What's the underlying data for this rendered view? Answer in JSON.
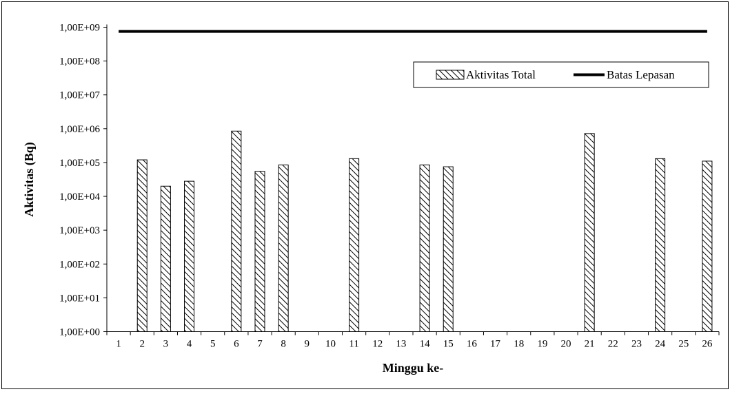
{
  "chart_data": {
    "type": "bar",
    "title": "",
    "xlabel": "Minggu ke-",
    "ylabel": "Aktivitas (Bq)",
    "yscale": "log",
    "ylim": [
      1,
      1000000000
    ],
    "y_tick_labels": [
      "1,00E+00",
      "1,00E+01",
      "1,00E+02",
      "1,00E+03",
      "1,00E+04",
      "1,00E+05",
      "1,00E+06",
      "1,00E+07",
      "1,00E+08",
      "1,00E+09"
    ],
    "categories": [
      "1",
      "2",
      "3",
      "4",
      "5",
      "6",
      "7",
      "8",
      "9",
      "10",
      "11",
      "12",
      "13",
      "14",
      "15",
      "16",
      "17",
      "18",
      "19",
      "20",
      "21",
      "22",
      "23",
      "24",
      "25",
      "26"
    ],
    "grid": false,
    "legend_position": "top-right",
    "series": [
      {
        "name": "Aktivitas Total",
        "type": "bar",
        "pattern": "diagonal-hatch",
        "color": "#000000",
        "values": [
          null,
          120000,
          20000,
          28000,
          null,
          850000,
          55000,
          85000,
          null,
          null,
          130000,
          null,
          null,
          85000,
          75000,
          null,
          null,
          null,
          null,
          null,
          720000,
          null,
          null,
          130000,
          null,
          110000
        ]
      },
      {
        "name": "Batas Lepasan",
        "type": "line",
        "color": "#000000",
        "values": [
          750000000,
          750000000,
          750000000,
          750000000,
          750000000,
          750000000,
          750000000,
          750000000,
          750000000,
          750000000,
          750000000,
          750000000,
          750000000,
          750000000,
          750000000,
          750000000,
          750000000,
          750000000,
          750000000,
          750000000,
          750000000,
          750000000,
          750000000,
          750000000,
          750000000,
          750000000
        ]
      }
    ]
  }
}
